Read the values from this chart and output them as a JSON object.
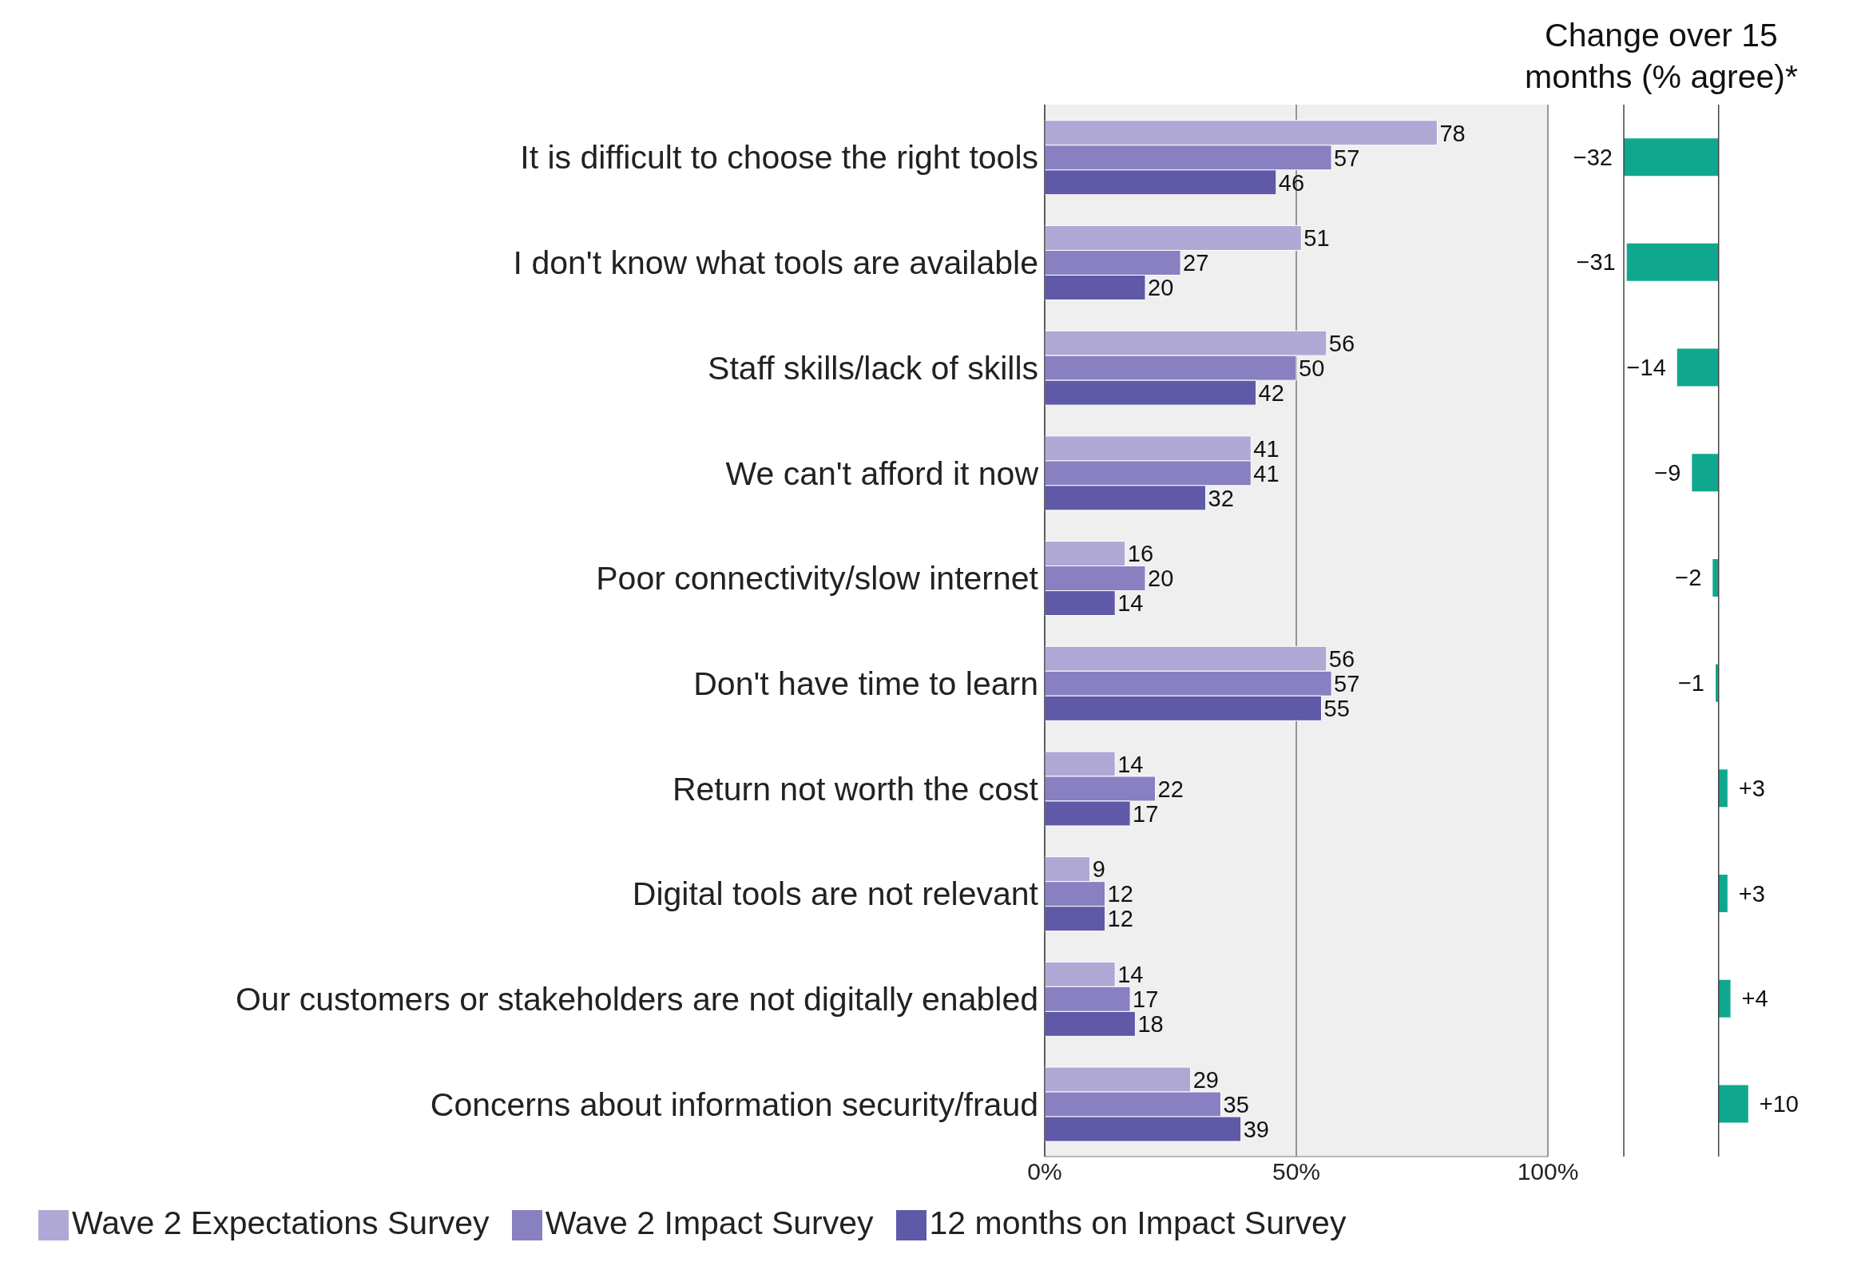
{
  "chart_data": [
    {
      "type": "bar",
      "orientation": "horizontal",
      "categories": [
        "It is difficult to choose the right tools",
        "I don't know what tools are available",
        "Staff skills/lack of skills",
        "We can't afford it now",
        "Poor connectivity/slow internet",
        "Don't have time to learn",
        "Return not worth the cost",
        "Digital tools are not relevant",
        "Our customers or stakeholders are not digitally enabled",
        "Concerns about information security/fraud"
      ],
      "series": [
        {
          "name": "Wave 2 Expectations Survey",
          "color": "#b0a8d4",
          "values": [
            78,
            51,
            56,
            41,
            16,
            56,
            14,
            9,
            14,
            29
          ]
        },
        {
          "name": "Wave 2 Impact Survey",
          "color": "#8880c0",
          "values": [
            57,
            27,
            50,
            41,
            20,
            57,
            22,
            12,
            17,
            35
          ]
        },
        {
          "name": "12 months on Impact Survey",
          "color": "#5f59a8",
          "values": [
            46,
            20,
            42,
            32,
            14,
            55,
            17,
            12,
            18,
            39
          ]
        }
      ],
      "xlim": [
        0,
        100
      ],
      "xticks": [
        {
          "value": 0,
          "label": "0%"
        },
        {
          "value": 50,
          "label": "50%"
        },
        {
          "value": 100,
          "label": "100%"
        }
      ],
      "grid": "x",
      "data_labels": true,
      "legend": "bottom"
    },
    {
      "type": "bar",
      "orientation": "horizontal",
      "title": "Change over 15 months (% agree)*",
      "categories": [
        null,
        null,
        null,
        null,
        null,
        null,
        null,
        null,
        null,
        null
      ],
      "color": "#0fa88f",
      "values": [
        -32,
        -31,
        -14,
        -9,
        -2,
        -1,
        3,
        3,
        4,
        10
      ],
      "value_labels": [
        "−32",
        "−31",
        "−14",
        "−9",
        "−2",
        "−1",
        "+3",
        "+3",
        "+4",
        "+10"
      ]
    }
  ]
}
